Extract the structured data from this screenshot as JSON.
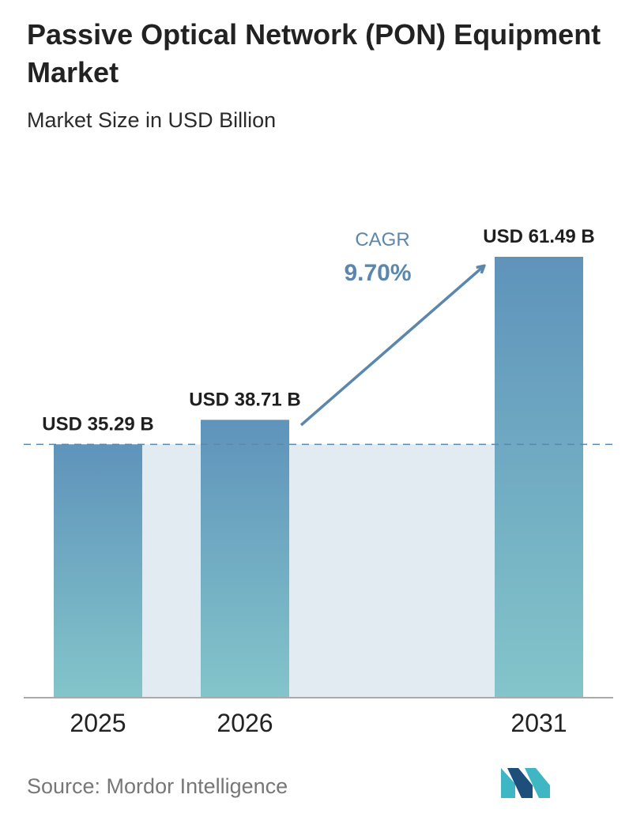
{
  "title": "Passive Optical Network (PON) Equipment Market",
  "subtitle": "Market Size in USD Billion",
  "source": "Source:  Mordor Intelligence",
  "cagr": {
    "label": "CAGR",
    "value": "9.70%"
  },
  "colors": {
    "bar_top": "#5f93bb",
    "bar_bottom": "#83c5ca",
    "band": "#e3ebf2",
    "accent": "#5b87ad",
    "axis": "#aaaaaa",
    "logo_dark": "#1e4f7a",
    "logo_light": "#3fb6c4"
  },
  "logo": {
    "icon": "mordor-intelligence-logo-icon"
  },
  "chart_data": {
    "type": "bar",
    "title": "Passive Optical Network (PON) Equipment Market",
    "subtitle": "Market Size in USD Billion",
    "categories": [
      "2025",
      "2026",
      "2031"
    ],
    "values": [
      35.29,
      38.71,
      61.49
    ],
    "data_labels": [
      "USD 35.29 B",
      "USD 38.71 B",
      "USD 61.49 B"
    ],
    "ylim": [
      0,
      61.49
    ],
    "grid": false,
    "reference_line": 35.29,
    "annotations": [
      "CAGR",
      "9.70%"
    ]
  }
}
